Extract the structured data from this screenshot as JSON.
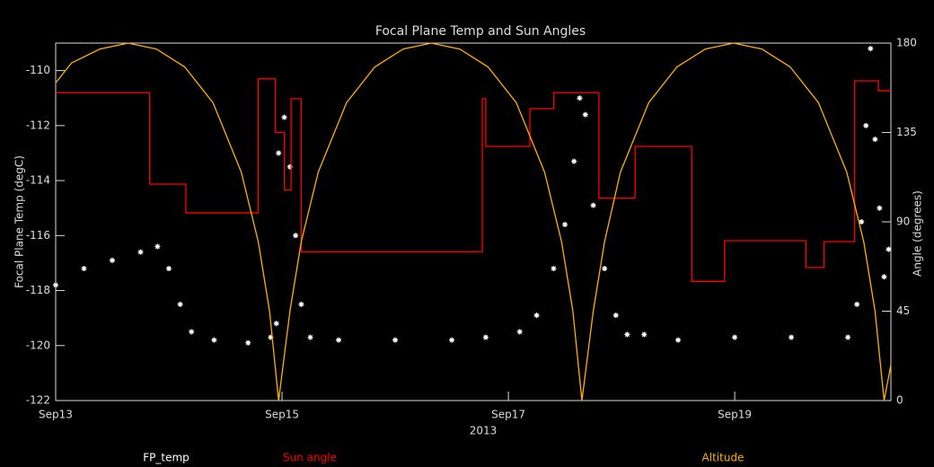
{
  "chart_data": {
    "type": "line",
    "title": "Focal Plane Temp and Sun Angles",
    "xlabel": "2013",
    "ylabel": "Focal Plane Temp (degC)",
    "y2label": "Angle (degrees)",
    "xlim": [
      0,
      7.38
    ],
    "xticks": [
      {
        "value": 0,
        "label": "Sep13"
      },
      {
        "value": 2,
        "label": "Sep15"
      },
      {
        "value": 4,
        "label": "Sep17"
      },
      {
        "value": 6,
        "label": "Sep19"
      }
    ],
    "ylim": [
      -122,
      -109
    ],
    "yticks": [
      -122,
      -120,
      -118,
      -116,
      -114,
      -112,
      -110
    ],
    "y2lim": [
      0,
      180
    ],
    "y2ticks": [
      0,
      45,
      90,
      135,
      180
    ],
    "series": [
      {
        "name": "FP_temp",
        "color": "#ffffff",
        "mode": "markers",
        "axis": "y",
        "x": [
          0,
          0.25,
          0.5,
          0.75,
          0.9,
          1.0,
          1.1,
          1.2,
          1.4,
          1.7,
          1.9,
          1.95,
          1.97,
          2.02,
          2.07,
          2.12,
          2.17,
          2.25,
          2.5,
          3.0,
          3.5,
          3.8,
          4.1,
          4.25,
          4.4,
          4.5,
          4.58,
          4.63,
          4.68,
          4.75,
          4.85,
          4.95,
          5.05,
          5.2,
          5.5,
          6.0,
          6.5,
          7.0,
          7.08,
          7.12,
          7.16,
          7.2,
          7.24,
          7.28,
          7.32,
          7.36
        ],
        "values": [
          -117.8,
          -117.2,
          -116.9,
          -116.6,
          -116.4,
          -117.2,
          -118.5,
          -119.5,
          -119.8,
          -119.9,
          -119.7,
          -119.2,
          -113,
          -111.7,
          -113.5,
          -116,
          -118.5,
          -119.7,
          -119.8,
          -119.8,
          -119.8,
          -119.7,
          -119.5,
          -118.9,
          -117.2,
          -115.6,
          -113.3,
          -111,
          -111.6,
          -114.9,
          -117.2,
          -118.9,
          -119.6,
          -119.6,
          -119.8,
          -119.7,
          -119.7,
          -119.7,
          -118.5,
          -115.5,
          -112,
          -109.2,
          -112.5,
          -115,
          -117.5,
          -116.5
        ]
      },
      {
        "name": "Sun angle",
        "color": "#ff0000",
        "mode": "lines",
        "axis": "y2",
        "x": [
          0,
          0.83,
          0.83,
          1.15,
          1.15,
          1.79,
          1.79,
          1.94,
          1.94,
          2.02,
          2.02,
          2.08,
          2.08,
          2.17,
          2.17,
          3.77,
          3.77,
          3.8,
          3.8,
          4.19,
          4.19,
          4.4,
          4.4,
          4.8,
          4.8,
          5.12,
          5.12,
          5.62,
          5.62,
          5.91,
          5.91,
          6.63,
          6.63,
          6.79,
          6.79,
          7.06,
          7.06,
          7.27,
          7.27,
          7.38
        ],
        "values": [
          155,
          155,
          109,
          109,
          94.5,
          94.5,
          162,
          162,
          135,
          135,
          106,
          106,
          152,
          152,
          75,
          75,
          152,
          152,
          128,
          128,
          147,
          147,
          155,
          155,
          102,
          102,
          128,
          128,
          60,
          60,
          80.5,
          80.5,
          67,
          67,
          80,
          80,
          161,
          161,
          156,
          156
        ]
      },
      {
        "name": "Altitude",
        "color": "#ffb000",
        "mode": "lines",
        "axis": "y2",
        "x": [
          0,
          0.14,
          0.39,
          0.64,
          0.89,
          1.14,
          1.39,
          1.64,
          1.79,
          1.89,
          1.97,
          2.07,
          2.17,
          2.32,
          2.57,
          2.82,
          3.07,
          3.32,
          3.57,
          3.82,
          4.07,
          4.32,
          4.47,
          4.57,
          4.65,
          4.75,
          4.85,
          4.99,
          5.24,
          5.49,
          5.74,
          5.99,
          6.24,
          6.49,
          6.74,
          6.99,
          7.14,
          7.24,
          7.32,
          7.38
        ],
        "values": [
          160,
          170,
          177,
          180,
          177,
          168,
          150,
          115,
          80,
          45,
          0,
          45,
          80,
          115,
          150,
          168,
          177,
          180,
          177,
          168,
          150,
          115,
          80,
          45,
          0,
          45,
          80,
          115,
          150,
          168,
          177,
          180,
          177,
          168,
          150,
          115,
          80,
          45,
          0,
          18
        ]
      }
    ]
  }
}
